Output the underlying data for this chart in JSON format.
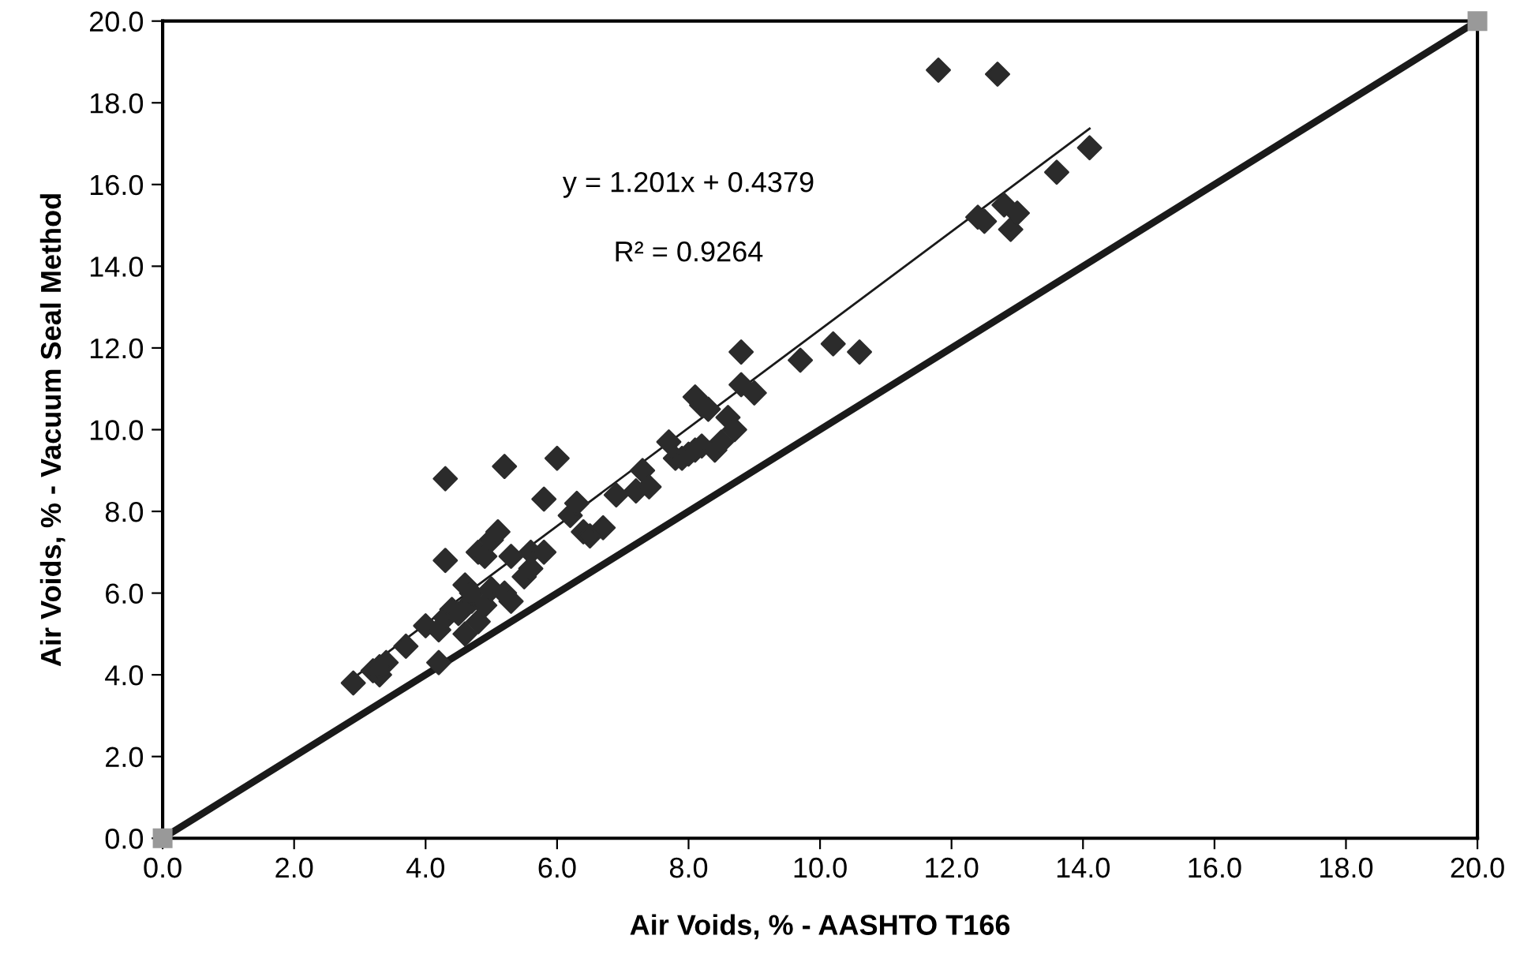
{
  "chart_data": {
    "type": "scatter",
    "xlabel": "Air Voids, % - AASHTO T166",
    "ylabel": "Air Voids, % - Vacuum Seal Method",
    "annotations": [
      "y = 1.201x + 0.4379",
      "R² = 0.9264"
    ],
    "xlim": [
      0,
      20
    ],
    "ylim": [
      0,
      20
    ],
    "xticks": [
      {
        "value": 0,
        "label": "0.0"
      },
      {
        "value": 2,
        "label": "2.0"
      },
      {
        "value": 4,
        "label": "4.0"
      },
      {
        "value": 6,
        "label": "6.0"
      },
      {
        "value": 8,
        "label": "8.0"
      },
      {
        "value": 10,
        "label": "10.0"
      },
      {
        "value": 12,
        "label": "12.0"
      },
      {
        "value": 14,
        "label": "14.0"
      },
      {
        "value": 16,
        "label": "16.0"
      },
      {
        "value": 18,
        "label": "18.0"
      },
      {
        "value": 20,
        "label": "20.0"
      }
    ],
    "yticks": [
      {
        "value": 0,
        "label": "0.0"
      },
      {
        "value": 2,
        "label": "2.0"
      },
      {
        "value": 4,
        "label": "4.0"
      },
      {
        "value": 6,
        "label": "6.0"
      },
      {
        "value": 8,
        "label": "8.0"
      },
      {
        "value": 10,
        "label": "10.0"
      },
      {
        "value": 12,
        "label": "12.0"
      },
      {
        "value": 14,
        "label": "14.0"
      },
      {
        "value": 16,
        "label": "16.0"
      },
      {
        "value": 18,
        "label": "18.0"
      },
      {
        "value": 20,
        "label": "20.0"
      }
    ],
    "grid": false,
    "legend": false,
    "series": [
      {
        "type": "line",
        "color": "#1a1a1a",
        "marker": "square",
        "line_style": "solid",
        "x": [
          0,
          20
        ],
        "values": [
          0,
          20
        ]
      },
      {
        "type": "line",
        "color": "#1a1a1a",
        "marker": "none",
        "line_style": "solid",
        "x": [
          2.9,
          14.1
        ],
        "values": [
          3.92,
          17.37
        ]
      },
      {
        "color": "#2b2b2b",
        "marker": "diamond",
        "x": [
          2.9,
          3.2,
          3.3,
          3.4,
          3.3,
          3.7,
          4.0,
          4.2,
          4.3,
          4.2,
          4.3,
          4.3,
          4.4,
          4.5,
          4.6,
          4.6,
          4.7,
          4.7,
          4.8,
          4.8,
          4.9,
          4.9,
          5.0,
          5.0,
          5.1,
          5.2,
          5.2,
          5.3,
          5.3,
          5.5,
          5.6,
          5.6,
          5.8,
          5.8,
          6.0,
          6.2,
          6.3,
          6.4,
          6.5,
          6.7,
          6.9,
          7.2,
          7.3,
          7.4,
          7.7,
          7.8,
          7.9,
          8.0,
          8.1,
          8.2,
          8.2,
          8.1,
          8.3,
          8.4,
          8.5,
          8.6,
          8.7,
          8.8,
          8.8,
          9.0,
          9.7,
          10.2,
          10.6,
          11.8,
          12.4,
          12.5,
          12.7,
          12.8,
          12.9,
          13.0,
          13.6,
          14.1
        ],
        "values": [
          3.8,
          4.1,
          4.0,
          4.3,
          4.2,
          4.7,
          5.2,
          5.1,
          5.4,
          4.3,
          6.8,
          8.8,
          5.6,
          5.5,
          6.2,
          5.0,
          5.8,
          6.0,
          7.0,
          5.3,
          6.9,
          5.7,
          7.3,
          6.1,
          7.5,
          6.0,
          9.1,
          5.8,
          6.9,
          6.4,
          6.6,
          7.0,
          8.3,
          7.0,
          9.3,
          7.9,
          8.2,
          7.5,
          7.4,
          7.6,
          8.4,
          8.5,
          9.0,
          8.6,
          9.7,
          9.3,
          9.3,
          9.4,
          10.8,
          10.6,
          9.6,
          9.5,
          10.5,
          9.5,
          9.7,
          10.3,
          10.0,
          11.9,
          11.1,
          10.9,
          11.7,
          12.1,
          11.9,
          18.8,
          15.2,
          15.1,
          18.7,
          15.5,
          14.9,
          15.3,
          16.3,
          16.9
        ]
      }
    ]
  }
}
